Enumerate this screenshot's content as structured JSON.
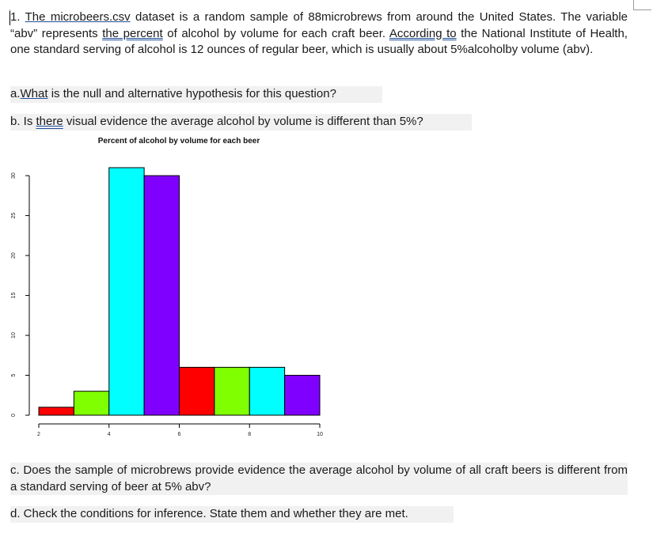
{
  "question": {
    "p1_num": "1. ",
    "p1_link1": "The microbeers.csv",
    "p1_t1": " dataset is a random sample of 88microbrews from around the United States. The variable “abv” represents ",
    "p1_link2": "the percent",
    "p1_t2": " of alcohol by volume for each craft beer. ",
    "p1_link3": "According to",
    "p1_t3": " the National Institute of Health, one standard serving of alcohol is 12 ounces of regular beer, which is usually about 5%alcoholby volume (abv).",
    "a_pre": "a.",
    "a_link": "What",
    "a_text": " is the null and alternative hypothesis for this question?",
    "b_pre": "b. Is ",
    "b_link": "there",
    "b_text": " visual evidence the average alcohol by volume is different than 5%?",
    "c_text": "c. Does the sample of microbrews provide evidence the average alcohol by volume of all craft beers is different from a standard serving of beer at 5% abv?",
    "d_text": "d. Check the conditions for inference. State them and whether they are met."
  },
  "chart_data": {
    "type": "bar",
    "title": "Percent of alcohol by volume for each beer",
    "xlabel": "",
    "ylabel": "",
    "bins": [
      {
        "x0": 2.0,
        "x1": 3.0,
        "value": 1,
        "color": "#ff0000"
      },
      {
        "x0": 3.0,
        "x1": 4.0,
        "value": 3,
        "color": "#80ff00"
      },
      {
        "x0": 4.0,
        "x1": 5.0,
        "value": 31,
        "color": "#00ffff"
      },
      {
        "x0": 5.0,
        "x1": 6.0,
        "value": 30,
        "color": "#8000ff"
      },
      {
        "x0": 6.0,
        "x1": 7.0,
        "value": 6,
        "color": "#ff0000"
      },
      {
        "x0": 7.0,
        "x1": 8.0,
        "value": 6,
        "color": "#80ff00"
      },
      {
        "x0": 8.0,
        "x1": 9.0,
        "value": 6,
        "color": "#00ffff"
      },
      {
        "x0": 9.0,
        "x1": 10.0,
        "value": 5,
        "color": "#8000ff"
      }
    ],
    "x_ticks": [
      2,
      4,
      6,
      8,
      10
    ],
    "y_ticks": [
      0,
      5,
      10,
      15,
      20,
      25,
      30
    ],
    "xlim": [
      2,
      10
    ],
    "ylim": [
      0,
      31
    ],
    "grid": false
  }
}
